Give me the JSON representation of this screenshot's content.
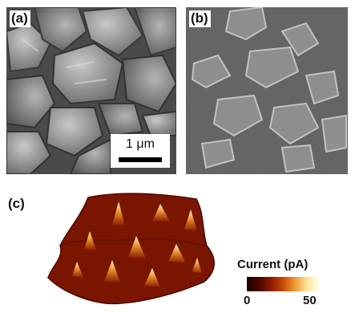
{
  "panels": {
    "a": {
      "label": "(a)",
      "scalebar": "1 μm"
    },
    "b": {
      "label": "(b)"
    },
    "c": {
      "label": "(c)"
    }
  },
  "colorbar": {
    "title": "Current (pA)",
    "min_label": "0",
    "max_label": "50",
    "colors": [
      "#1a0000",
      "#8a1a00",
      "#ee9a33",
      "#ffffe8"
    ]
  }
}
